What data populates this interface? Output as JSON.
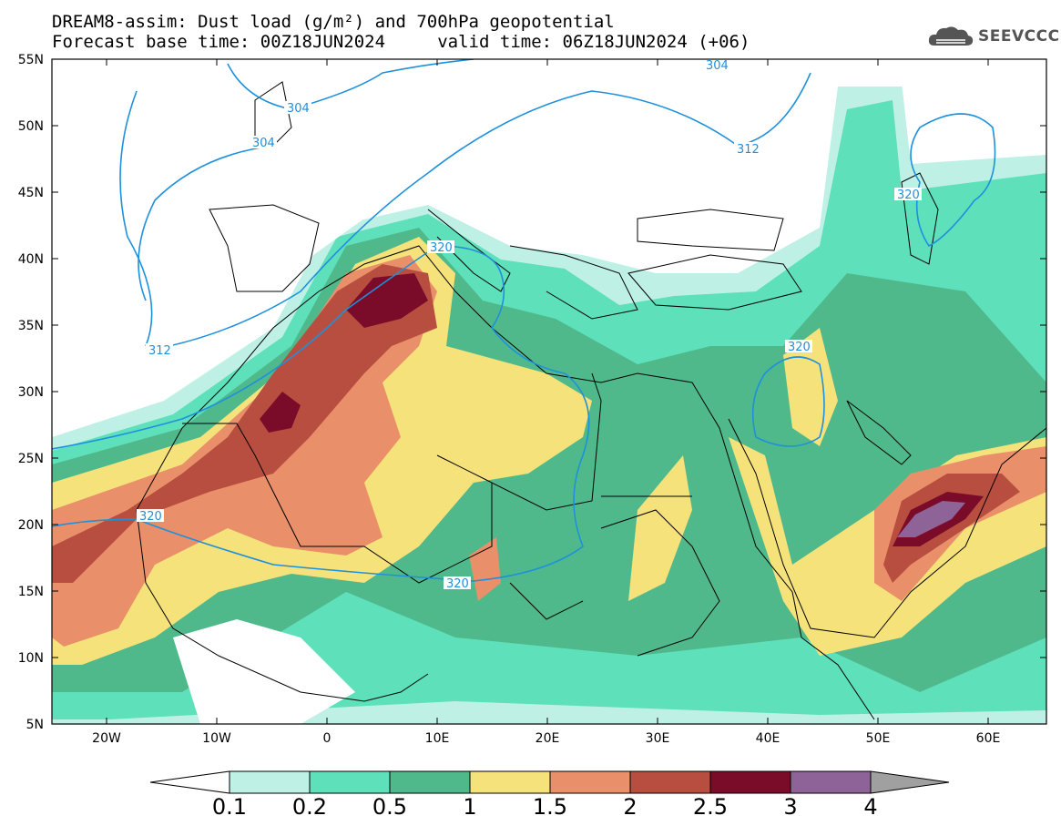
{
  "title": {
    "line1": "DREAM8-assim: Dust load (g/m²) and 700hPa geopotential",
    "line2": "Forecast base time: 00Z18JUN2024     valid time: 06Z18JUN2024 (+06)"
  },
  "logo": {
    "text": "SEEVCCC",
    "icon": "cloud-logo-icon"
  },
  "map": {
    "lat_labels": [
      "55N",
      "50N",
      "45N",
      "40N",
      "35N",
      "30N",
      "25N",
      "20N",
      "15N",
      "10N",
      "5N"
    ],
    "lon_labels": [
      "20W",
      "10W",
      "0",
      "10E",
      "20E",
      "30E",
      "40E",
      "50E",
      "60E"
    ],
    "contour_labels": [
      "304",
      "304",
      "304",
      "312",
      "312",
      "320",
      "320",
      "320",
      "320",
      "320"
    ],
    "colors": {
      "contour": "#1e90dc",
      "borders": "#000000"
    }
  },
  "colorbar": {
    "labels": [
      "0.1",
      "0.2",
      "0.5",
      "1",
      "1.5",
      "2",
      "2.5",
      "3",
      "4"
    ],
    "colors": [
      "#ffffff",
      "#bff0e6",
      "#5ee0bb",
      "#50b98c",
      "#f5e27a",
      "#e9906a",
      "#b84e3f",
      "#7a0c2a",
      "#8e6498",
      "#a0a0a0"
    ]
  }
}
